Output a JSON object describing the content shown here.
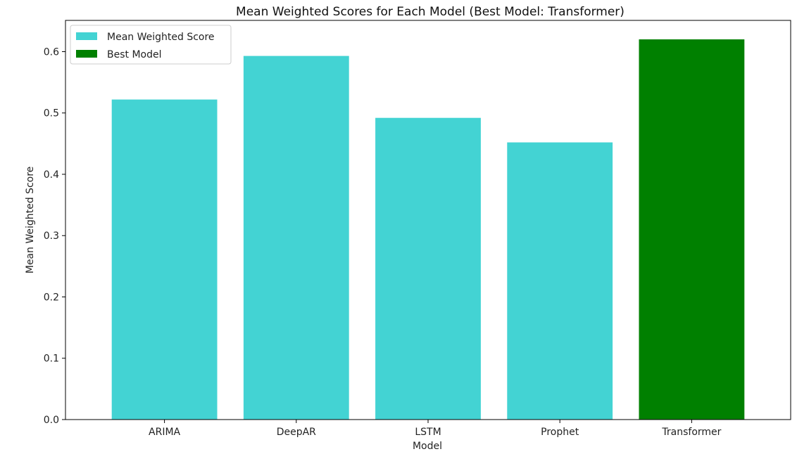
{
  "chart_data": {
    "type": "bar",
    "title": "Mean Weighted Scores for Each Model (Best Model: Transformer)",
    "xlabel": "Model",
    "ylabel": "Mean Weighted Score",
    "categories": [
      "ARIMA",
      "DeepAR",
      "LSTM",
      "Prophet",
      "Transformer"
    ],
    "values": [
      0.522,
      0.593,
      0.492,
      0.452,
      0.62
    ],
    "ylim": [
      0.0,
      0.651
    ],
    "yticks": [
      "0.0",
      "0.1",
      "0.2",
      "0.3",
      "0.4",
      "0.5",
      "0.6"
    ],
    "grid": false,
    "legend": {
      "placement": "top-left",
      "entries": [
        {
          "label": "Mean Weighted Score",
          "color": "#43d3d3"
        },
        {
          "label": "Best Model",
          "color": "#008000"
        }
      ]
    },
    "best_category": "Transformer",
    "colors": {
      "default": "#43d3d3",
      "best": "#008000",
      "axis": "#000000"
    }
  }
}
